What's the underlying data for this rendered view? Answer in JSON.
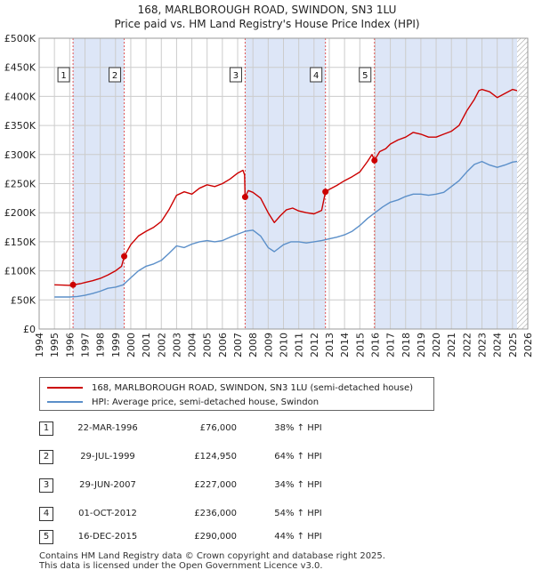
{
  "title": {
    "line1": "168, MARLBOROUGH ROAD, SWINDON, SN3 1LU",
    "line2": "Price paid vs. HM Land Registry's House Price Index (HPI)"
  },
  "colors": {
    "property": "#cc0000",
    "hpi": "#5b8fc9",
    "shade": "#dde6f7",
    "grid": "#cccccc",
    "vline": "#e05555"
  },
  "chart_data": {
    "type": "line",
    "xlim": [
      1994,
      2026
    ],
    "ylim": [
      0,
      500000
    ],
    "y_ticks": [
      0,
      50000,
      100000,
      150000,
      200000,
      250000,
      300000,
      350000,
      400000,
      450000,
      500000
    ],
    "y_tick_labels": [
      "£0",
      "£50K",
      "£100K",
      "£150K",
      "£200K",
      "£250K",
      "£300K",
      "£350K",
      "£400K",
      "£450K",
      "£500K"
    ],
    "x_ticks": [
      1994,
      1995,
      1996,
      1997,
      1998,
      1999,
      2000,
      2001,
      2002,
      2003,
      2004,
      2005,
      2006,
      2007,
      2008,
      2009,
      2010,
      2011,
      2012,
      2013,
      2014,
      2015,
      2016,
      2017,
      2018,
      2019,
      2020,
      2021,
      2022,
      2023,
      2024,
      2025,
      2026
    ],
    "x_tick_labels": [
      "1994",
      "1995",
      "1996",
      "1997",
      "1998",
      "1999",
      "2000",
      "2001",
      "2002",
      "2003",
      "2004",
      "2005",
      "2006",
      "2007",
      "2008",
      "2009",
      "2010",
      "2011",
      "2012",
      "2013",
      "2014",
      "2015",
      "2016",
      "2017",
      "2018",
      "2019",
      "2020",
      "2021",
      "2022",
      "2023",
      "2024",
      "2025",
      "2026"
    ],
    "shaded_ranges": [
      [
        1996.22,
        1999.57
      ],
      [
        2007.49,
        2012.75
      ],
      [
        2015.96,
        2025.3
      ]
    ],
    "hatched_range": [
      2025.3,
      2026
    ],
    "series": [
      {
        "name": "168, MARLBOROUGH ROAD, SWINDON, SN3 1LU (semi-detached house)",
        "points": [
          [
            1995.0,
            76000
          ],
          [
            1995.5,
            75500
          ],
          [
            1996.0,
            75000
          ],
          [
            1996.22,
            76000
          ],
          [
            1996.7,
            78000
          ],
          [
            1997.0,
            80000
          ],
          [
            1997.5,
            83000
          ],
          [
            1998.0,
            87000
          ],
          [
            1998.5,
            93000
          ],
          [
            1999.0,
            100000
          ],
          [
            1999.4,
            108000
          ],
          [
            1999.57,
            124950
          ],
          [
            2000.0,
            145000
          ],
          [
            2000.5,
            160000
          ],
          [
            2001.0,
            168000
          ],
          [
            2001.5,
            175000
          ],
          [
            2002.0,
            185000
          ],
          [
            2002.5,
            205000
          ],
          [
            2003.0,
            230000
          ],
          [
            2003.5,
            236000
          ],
          [
            2004.0,
            232000
          ],
          [
            2004.5,
            242000
          ],
          [
            2005.0,
            248000
          ],
          [
            2005.5,
            245000
          ],
          [
            2006.0,
            250000
          ],
          [
            2006.5,
            258000
          ],
          [
            2007.0,
            268000
          ],
          [
            2007.35,
            273000
          ],
          [
            2007.45,
            265000
          ],
          [
            2007.49,
            227000
          ],
          [
            2007.7,
            238000
          ],
          [
            2008.0,
            235000
          ],
          [
            2008.5,
            225000
          ],
          [
            2009.0,
            200000
          ],
          [
            2009.4,
            183000
          ],
          [
            2009.8,
            195000
          ],
          [
            2010.2,
            205000
          ],
          [
            2010.6,
            208000
          ],
          [
            2011.0,
            203000
          ],
          [
            2011.5,
            200000
          ],
          [
            2012.0,
            198000
          ],
          [
            2012.5,
            204000
          ],
          [
            2012.75,
            236000
          ],
          [
            2013.0,
            240000
          ],
          [
            2013.5,
            247000
          ],
          [
            2014.0,
            255000
          ],
          [
            2014.5,
            262000
          ],
          [
            2015.0,
            270000
          ],
          [
            2015.5,
            288000
          ],
          [
            2015.8,
            300000
          ],
          [
            2015.96,
            290000
          ],
          [
            2016.3,
            305000
          ],
          [
            2016.7,
            310000
          ],
          [
            2017.0,
            318000
          ],
          [
            2017.5,
            325000
          ],
          [
            2018.0,
            330000
          ],
          [
            2018.5,
            338000
          ],
          [
            2019.0,
            335000
          ],
          [
            2019.5,
            330000
          ],
          [
            2020.0,
            330000
          ],
          [
            2020.5,
            335000
          ],
          [
            2021.0,
            340000
          ],
          [
            2021.5,
            350000
          ],
          [
            2022.0,
            375000
          ],
          [
            2022.5,
            395000
          ],
          [
            2022.8,
            410000
          ],
          [
            2023.0,
            412000
          ],
          [
            2023.5,
            408000
          ],
          [
            2024.0,
            398000
          ],
          [
            2024.5,
            405000
          ],
          [
            2025.0,
            412000
          ],
          [
            2025.3,
            410000
          ]
        ]
      },
      {
        "name": "HPI: Average price, semi-detached house, Swindon",
        "points": [
          [
            1995.0,
            55000
          ],
          [
            1995.5,
            55000
          ],
          [
            1996.0,
            55000
          ],
          [
            1996.5,
            56000
          ],
          [
            1997.0,
            58000
          ],
          [
            1997.5,
            61000
          ],
          [
            1998.0,
            65000
          ],
          [
            1998.5,
            70000
          ],
          [
            1999.0,
            72000
          ],
          [
            1999.5,
            76000
          ],
          [
            2000.0,
            88000
          ],
          [
            2000.5,
            100000
          ],
          [
            2001.0,
            108000
          ],
          [
            2001.5,
            112000
          ],
          [
            2002.0,
            118000
          ],
          [
            2002.5,
            130000
          ],
          [
            2003.0,
            143000
          ],
          [
            2003.5,
            140000
          ],
          [
            2004.0,
            146000
          ],
          [
            2004.5,
            150000
          ],
          [
            2005.0,
            152000
          ],
          [
            2005.5,
            150000
          ],
          [
            2006.0,
            152000
          ],
          [
            2006.5,
            158000
          ],
          [
            2007.0,
            163000
          ],
          [
            2007.5,
            168000
          ],
          [
            2008.0,
            170000
          ],
          [
            2008.5,
            160000
          ],
          [
            2009.0,
            140000
          ],
          [
            2009.4,
            133000
          ],
          [
            2010.0,
            145000
          ],
          [
            2010.5,
            150000
          ],
          [
            2011.0,
            150000
          ],
          [
            2011.5,
            148000
          ],
          [
            2012.0,
            150000
          ],
          [
            2012.5,
            152000
          ],
          [
            2013.0,
            155000
          ],
          [
            2013.5,
            158000
          ],
          [
            2014.0,
            162000
          ],
          [
            2014.5,
            168000
          ],
          [
            2015.0,
            178000
          ],
          [
            2015.5,
            190000
          ],
          [
            2016.0,
            200000
          ],
          [
            2016.5,
            210000
          ],
          [
            2017.0,
            218000
          ],
          [
            2017.5,
            222000
          ],
          [
            2018.0,
            228000
          ],
          [
            2018.5,
            232000
          ],
          [
            2019.0,
            232000
          ],
          [
            2019.5,
            230000
          ],
          [
            2020.0,
            232000
          ],
          [
            2020.5,
            235000
          ],
          [
            2021.0,
            245000
          ],
          [
            2021.5,
            255000
          ],
          [
            2022.0,
            270000
          ],
          [
            2022.5,
            283000
          ],
          [
            2023.0,
            288000
          ],
          [
            2023.5,
            282000
          ],
          [
            2024.0,
            278000
          ],
          [
            2024.5,
            282000
          ],
          [
            2025.0,
            287000
          ],
          [
            2025.3,
            288000
          ]
        ]
      }
    ],
    "sales": [
      {
        "label": "1",
        "x": 1996.22,
        "price": 76000
      },
      {
        "label": "2",
        "x": 1999.57,
        "price": 124950
      },
      {
        "label": "3",
        "x": 2007.49,
        "price": 227000
      },
      {
        "label": "4",
        "x": 2012.75,
        "price": 236000
      },
      {
        "label": "5",
        "x": 2015.96,
        "price": 290000
      }
    ]
  },
  "legend": {
    "property_label": "168, MARLBOROUGH ROAD, SWINDON, SN3 1LU (semi-detached house)",
    "hpi_label": "HPI: Average price, semi-detached house, Swindon"
  },
  "sales_table": [
    {
      "num": "1",
      "date": "22-MAR-1996",
      "price": "£76,000",
      "hpi": "38% ↑ HPI"
    },
    {
      "num": "2",
      "date": "29-JUL-1999",
      "price": "£124,950",
      "hpi": "64% ↑ HPI"
    },
    {
      "num": "3",
      "date": "29-JUN-2007",
      "price": "£227,000",
      "hpi": "34% ↑ HPI"
    },
    {
      "num": "4",
      "date": "01-OCT-2012",
      "price": "£236,000",
      "hpi": "54% ↑ HPI"
    },
    {
      "num": "5",
      "date": "16-DEC-2015",
      "price": "£290,000",
      "hpi": "44% ↑ HPI"
    }
  ],
  "footer": {
    "line1": "Contains HM Land Registry data © Crown copyright and database right 2025.",
    "line2": "This data is licensed under the Open Government Licence v3.0."
  }
}
